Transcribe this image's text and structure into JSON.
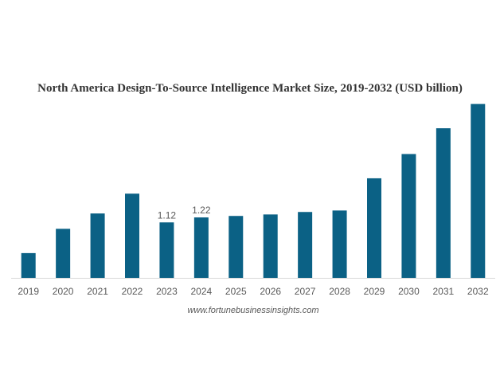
{
  "chart_data": {
    "type": "bar",
    "title": "North America Design-To-Source Intelligence Market Size, 2019-2032 (USD billion)",
    "xlabel": "",
    "ylabel": "",
    "categories": [
      "2019",
      "2020",
      "2021",
      "2022",
      "2023",
      "2024",
      "2025",
      "2026",
      "2027",
      "2028",
      "2029",
      "2030",
      "2031",
      "2032"
    ],
    "values": [
      0.5,
      0.99,
      1.3,
      1.7,
      1.12,
      1.22,
      1.25,
      1.28,
      1.33,
      1.36,
      2.01,
      2.5,
      3.02,
      3.51
    ],
    "data_labels": {
      "2023": "1.12",
      "2024": "1.22"
    },
    "ylim": [
      0,
      3.6
    ],
    "grid": false,
    "legend": "none",
    "bar_color": "#0b6185",
    "axis_color": "#d9d9d9",
    "source": "www.fortunebusinessinsights.com"
  }
}
